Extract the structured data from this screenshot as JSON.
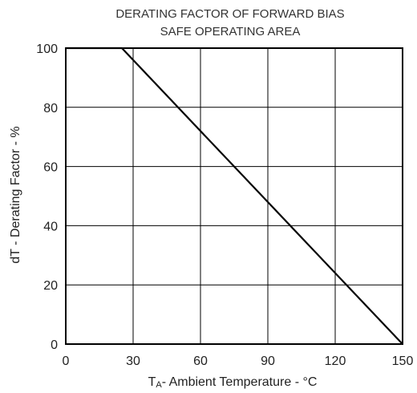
{
  "chart_data": {
    "type": "line",
    "title_lines": [
      "DERATING FACTOR OF FORWARD BIAS",
      "SAFE OPERATING AREA"
    ],
    "xlabel": {
      "prefix": "T",
      "subscript": "A",
      "suffix": "- Ambient Temperature - °C"
    },
    "ylabel": "dT - Derating Factor - %",
    "xlim": [
      0,
      150
    ],
    "ylim": [
      0,
      100
    ],
    "x_ticks": [
      "0",
      "30",
      "60",
      "90",
      "120",
      "150"
    ],
    "y_ticks": [
      "0",
      "20",
      "40",
      "60",
      "80",
      "100"
    ],
    "grid": true,
    "series": [
      {
        "points": [
          [
            0,
            100
          ],
          [
            25,
            100
          ],
          [
            150,
            0
          ]
        ]
      }
    ],
    "line_color": "#000000",
    "grid_color": "#000000"
  }
}
